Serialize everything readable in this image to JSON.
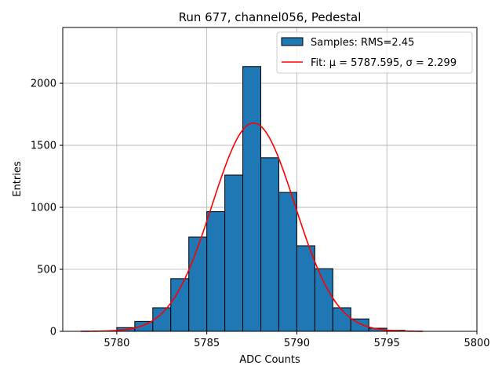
{
  "chart_data": {
    "type": "bar",
    "title": "Run 677, channel056, Pedestal",
    "xlabel": "ADC Counts",
    "ylabel": "Entries",
    "xlim": [
      5777,
      5800
    ],
    "ylim": [
      0,
      2450
    ],
    "xticks": [
      5780,
      5785,
      5790,
      5795,
      5800
    ],
    "yticks": [
      0,
      500,
      1000,
      1500,
      2000
    ],
    "grid": true,
    "legend_position": "top-right",
    "bin_width": 1,
    "bins": [
      {
        "x": 5780,
        "value": 30
      },
      {
        "x": 5781,
        "value": 80
      },
      {
        "x": 5782,
        "value": 190
      },
      {
        "x": 5783,
        "value": 425
      },
      {
        "x": 5784,
        "value": 760
      },
      {
        "x": 5785,
        "value": 965
      },
      {
        "x": 5786,
        "value": 1260
      },
      {
        "x": 5787,
        "value": 2135
      },
      {
        "x": 5788,
        "value": 1400
      },
      {
        "x": 5789,
        "value": 1120
      },
      {
        "x": 5790,
        "value": 690
      },
      {
        "x": 5791,
        "value": 505
      },
      {
        "x": 5792,
        "value": 190
      },
      {
        "x": 5793,
        "value": 100
      },
      {
        "x": 5794,
        "value": 25
      },
      {
        "x": 5795,
        "value": 8
      }
    ],
    "fit": {
      "mu": 5787.595,
      "sigma": 2.299,
      "amplitude": 1680,
      "x_range": [
        5778,
        5797
      ]
    },
    "series": [
      {
        "name": "Samples: RMS=2.45",
        "color": "#1f77b4",
        "kind": "histogram"
      },
      {
        "name": "Fit: μ = 5787.595, σ = 2.299",
        "color": "#ff0000",
        "kind": "line"
      }
    ]
  }
}
